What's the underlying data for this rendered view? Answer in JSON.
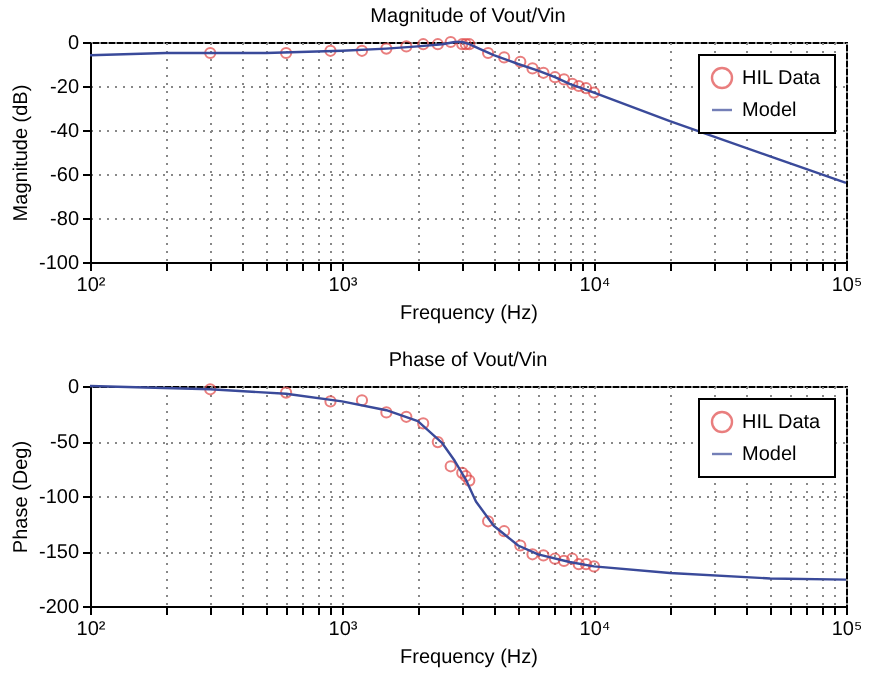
{
  "chart_data": [
    {
      "type": "line",
      "title": "Magnitude of Vout/Vin",
      "xlabel": "Frequency (Hz)",
      "ylabel": "Magnitude (dB)",
      "log": "x",
      "grid": true,
      "legend": "top right",
      "xlim": [
        100,
        100000
      ],
      "xticks": [
        {
          "value": 100,
          "label": "10²"
        },
        {
          "value": 200,
          "label": null
        },
        {
          "value": 300,
          "label": null
        },
        {
          "value": 400,
          "label": null
        },
        {
          "value": 500,
          "label": null
        },
        {
          "value": 600,
          "label": null
        },
        {
          "value": 700,
          "label": null
        },
        {
          "value": 800,
          "label": null
        },
        {
          "value": 900,
          "label": null
        },
        {
          "value": 1000,
          "label": "10³"
        },
        {
          "value": 2000,
          "label": null
        },
        {
          "value": 3000,
          "label": null
        },
        {
          "value": 4000,
          "label": null
        },
        {
          "value": 5000,
          "label": null
        },
        {
          "value": 6000,
          "label": null
        },
        {
          "value": 7000,
          "label": null
        },
        {
          "value": 8000,
          "label": null
        },
        {
          "value": 9000,
          "label": null
        },
        {
          "value": 10000,
          "label": "10⁴"
        },
        {
          "value": 20000,
          "label": null
        },
        {
          "value": 30000,
          "label": null
        },
        {
          "value": 40000,
          "label": null
        },
        {
          "value": 50000,
          "label": null
        },
        {
          "value": 60000,
          "label": null
        },
        {
          "value": 70000,
          "label": null
        },
        {
          "value": 80000,
          "label": null
        },
        {
          "value": 90000,
          "label": null
        },
        {
          "value": 100000,
          "label": "10⁵"
        }
      ],
      "ylim": [
        -100,
        0
      ],
      "yticks": [
        -100,
        -80,
        -60,
        -40,
        -20,
        0
      ],
      "series": [
        {
          "name": "HIL Data",
          "type": "scatter",
          "marker": "circle",
          "color": "#e04848",
          "x": [
            300,
            600,
            900,
            1200,
            1500,
            1800,
            2100,
            2400,
            2700,
            3000,
            3100,
            3200,
            3800,
            4400,
            5100,
            5700,
            6300,
            7000,
            7600,
            8200,
            8700,
            9300,
            10000
          ],
          "values": [
            -5,
            -5,
            -4,
            -4,
            -3,
            -2,
            -1,
            -1,
            0,
            -1,
            -1,
            -1,
            -5,
            -7,
            -9,
            -12,
            -14,
            -16,
            -17,
            -19,
            -20,
            -21,
            -23
          ]
        },
        {
          "name": "Model",
          "type": "line",
          "marker": "none",
          "color": "#3a4a9a",
          "x": [
            100,
            200,
            500,
            1000,
            1500,
            2000,
            2500,
            2800,
            3000,
            3200,
            3500,
            4000,
            5000,
            6000,
            7000,
            8000,
            10000,
            20000,
            50000,
            100000
          ],
          "values": [
            -6,
            -5,
            -5,
            -4,
            -3,
            -2,
            -1,
            0,
            0,
            -1,
            -3,
            -6,
            -10,
            -13,
            -16,
            -19,
            -23,
            -36,
            -52,
            -64
          ]
        }
      ]
    },
    {
      "type": "line",
      "title": "Phase of Vout/Vin",
      "xlabel": "Frequency (Hz)",
      "ylabel": "Phase (Deg)",
      "log": "x",
      "grid": true,
      "legend": "top right",
      "xlim": [
        100,
        100000
      ],
      "xticks": [
        {
          "value": 100,
          "label": "10²"
        },
        {
          "value": 200,
          "label": null
        },
        {
          "value": 300,
          "label": null
        },
        {
          "value": 400,
          "label": null
        },
        {
          "value": 500,
          "label": null
        },
        {
          "value": 600,
          "label": null
        },
        {
          "value": 700,
          "label": null
        },
        {
          "value": 800,
          "label": null
        },
        {
          "value": 900,
          "label": null
        },
        {
          "value": 1000,
          "label": "10³"
        },
        {
          "value": 2000,
          "label": null
        },
        {
          "value": 3000,
          "label": null
        },
        {
          "value": 4000,
          "label": null
        },
        {
          "value": 5000,
          "label": null
        },
        {
          "value": 6000,
          "label": null
        },
        {
          "value": 7000,
          "label": null
        },
        {
          "value": 8000,
          "label": null
        },
        {
          "value": 9000,
          "label": null
        },
        {
          "value": 10000,
          "label": "10⁴"
        },
        {
          "value": 20000,
          "label": null
        },
        {
          "value": 30000,
          "label": null
        },
        {
          "value": 40000,
          "label": null
        },
        {
          "value": 50000,
          "label": null
        },
        {
          "value": 60000,
          "label": null
        },
        {
          "value": 70000,
          "label": null
        },
        {
          "value": 80000,
          "label": null
        },
        {
          "value": 90000,
          "label": null
        },
        {
          "value": 100000,
          "label": "10⁵"
        }
      ],
      "ylim": [
        -200,
        0
      ],
      "yticks": [
        -200,
        -150,
        -100,
        -50,
        0
      ],
      "series": [
        {
          "name": "HIL Data",
          "type": "scatter",
          "marker": "circle",
          "color": "#e04848",
          "x": [
            300,
            600,
            900,
            1200,
            1500,
            1800,
            2100,
            2400,
            2700,
            3000,
            3100,
            3200,
            3800,
            4400,
            5100,
            5700,
            6300,
            7000,
            7600,
            8200,
            8700,
            9300,
            10000
          ],
          "values": [
            -3,
            -6,
            -14,
            -13,
            -24,
            -28,
            -34,
            -51,
            -73,
            -79,
            -82,
            -86,
            -123,
            -132,
            -145,
            -153,
            -154,
            -157,
            -159,
            -157,
            -162,
            -162,
            -164
          ]
        },
        {
          "name": "Model",
          "type": "line",
          "marker": "none",
          "color": "#3a4a9a",
          "x": [
            100,
            300,
            600,
            1000,
            1500,
            2000,
            2500,
            2800,
            3100,
            3400,
            4000,
            5000,
            6000,
            8000,
            10000,
            20000,
            50000,
            100000
          ],
          "values": [
            0,
            -3,
            -7,
            -14,
            -22,
            -32,
            -52,
            -68,
            -85,
            -105,
            -127,
            -145,
            -153,
            -160,
            -164,
            -170,
            -175,
            -176
          ]
        }
      ]
    }
  ]
}
